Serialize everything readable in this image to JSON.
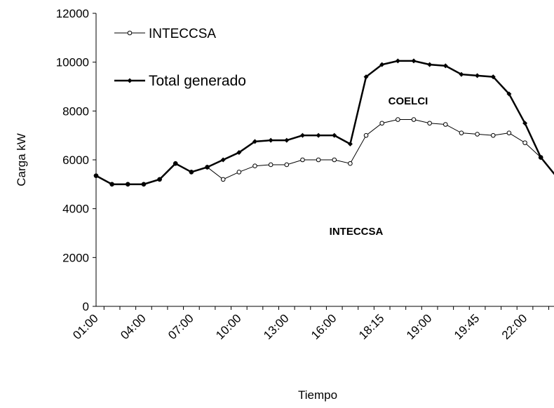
{
  "chart_data": {
    "type": "line",
    "x_label": "Tiempo",
    "y_label": "Carga kW",
    "categories": [
      "01:00",
      null,
      null,
      "04:00",
      null,
      null,
      "07:00",
      null,
      null,
      "10:00",
      null,
      null,
      "13:00",
      null,
      null,
      "16:00",
      null,
      null,
      "18:15",
      null,
      null,
      "19:00",
      null,
      null,
      "19:45",
      null,
      null,
      "22:00",
      null,
      null
    ],
    "series": [
      {
        "name": "INTECCSA",
        "color": "#000000",
        "marker": "circle",
        "values": [
          5350,
          5000,
          5000,
          5000,
          5200,
          5850,
          5500,
          5700,
          5200,
          5500,
          5750,
          5800,
          5800,
          6000,
          6000,
          6000,
          5850,
          7000,
          7500,
          7650,
          7650,
          7500,
          7450,
          7100,
          7050,
          7000,
          7100,
          6700,
          6100,
          null
        ]
      },
      {
        "name": "Total generado",
        "color": "#000000",
        "marker": "diamond",
        "values": [
          5350,
          5000,
          5000,
          5000,
          5200,
          5850,
          5500,
          5700,
          6000,
          6300,
          6750,
          6800,
          6800,
          7000,
          7000,
          7000,
          6650,
          9400,
          9900,
          10050,
          10050,
          9900,
          9850,
          9500,
          9450,
          9400,
          8700,
          7500,
          6100,
          5300
        ]
      }
    ],
    "annotations": [
      "COELCI",
      "INTECCSA"
    ],
    "ylim": [
      0,
      12000
    ],
    "yticks": [
      0,
      2000,
      4000,
      6000,
      8000,
      10000,
      12000
    ],
    "grid": false,
    "legend": "top-left"
  }
}
